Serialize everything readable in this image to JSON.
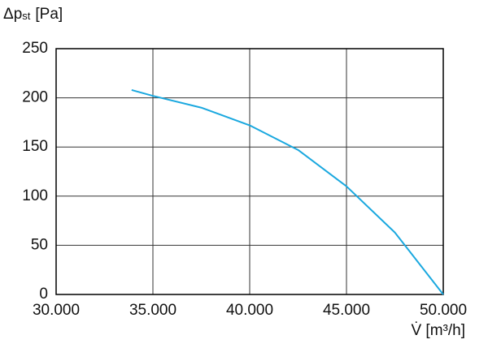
{
  "chart_data": {
    "type": "line",
    "y_label": {
      "base": "Δp",
      "subscript": "st",
      "unit": "[Pa]"
    },
    "x_label": "V̇ [m³/h]",
    "x": [
      33900,
      35000,
      37500,
      40000,
      42500,
      45000,
      47500,
      50000
    ],
    "series": [
      {
        "color": "#1aa8df",
        "values": [
          208,
          202,
          190,
          172,
          147,
          110,
          63,
          0
        ]
      }
    ],
    "xlim": [
      30000,
      50000
    ],
    "xticks": [
      {
        "value": 30000,
        "label": "30.000"
      },
      {
        "value": 35000,
        "label": "35.000"
      },
      {
        "value": 40000,
        "label": "40.000"
      },
      {
        "value": 45000,
        "label": "45.000"
      },
      {
        "value": 50000,
        "label": "50.000"
      }
    ],
    "ylim": [
      0,
      250
    ],
    "yticks": [
      0,
      50,
      100,
      150,
      200,
      250
    ],
    "grid": true
  }
}
